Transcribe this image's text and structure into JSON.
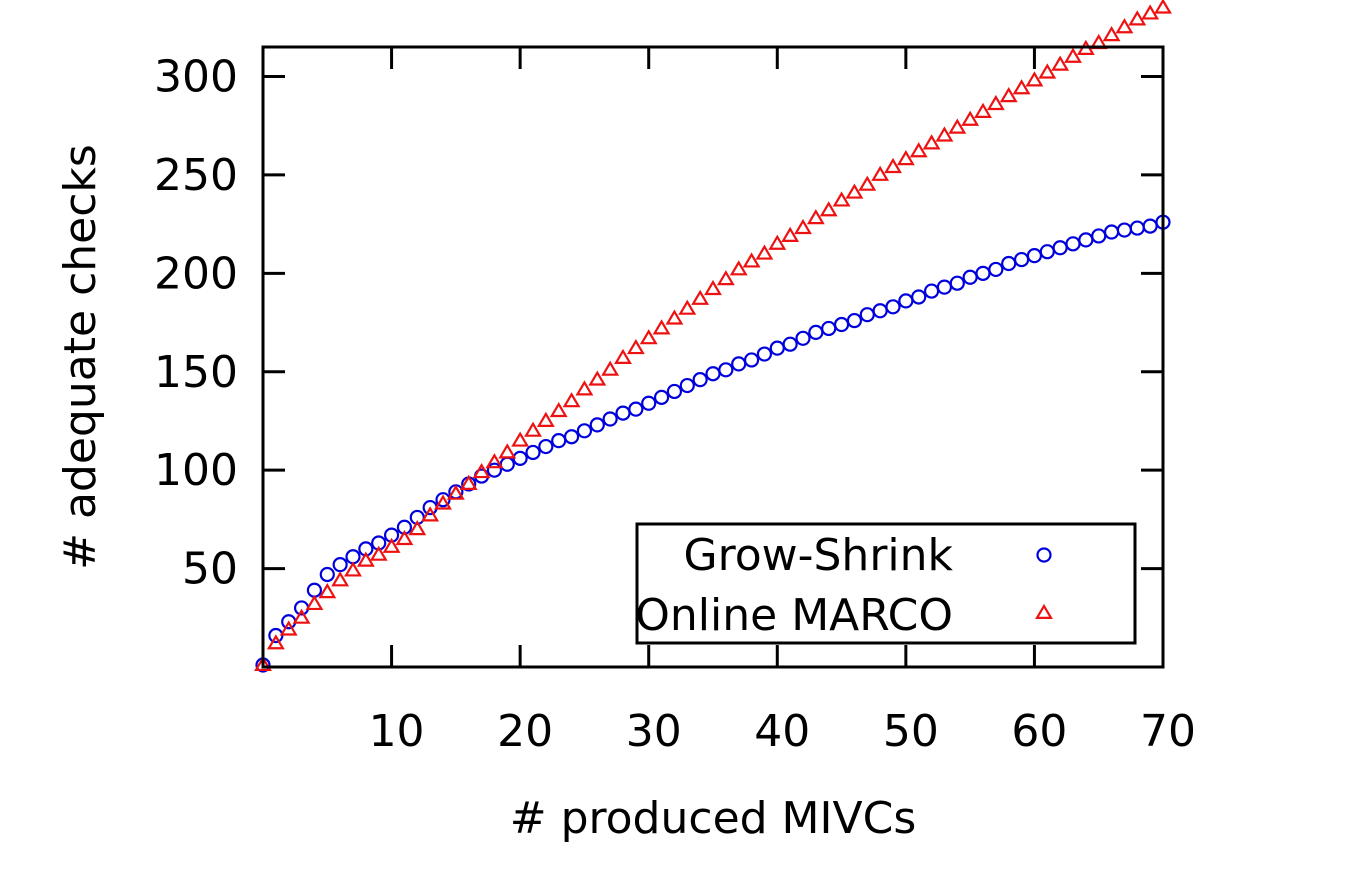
{
  "chart_data": {
    "type": "scatter",
    "xlabel": "# produced MIVCs",
    "ylabel": "# adequate checks",
    "xlim": [
      0,
      70
    ],
    "ylim": [
      0,
      315
    ],
    "xticks": [
      10,
      20,
      30,
      40,
      50,
      60,
      70
    ],
    "yticks": [
      50,
      100,
      150,
      200,
      250,
      300
    ],
    "x_tick_labels": [
      "10",
      "20",
      "30",
      "40",
      "50",
      "60",
      "70"
    ],
    "y_tick_labels": [
      "50",
      "100",
      "150",
      "200",
      "250",
      "300"
    ],
    "grid": false,
    "legend": "bottom-right",
    "series": [
      {
        "name": "Grow-Shrink",
        "marker": "circle",
        "color": "#0000dd",
        "x": [
          0,
          1,
          2,
          3,
          4,
          5,
          6,
          7,
          8,
          9,
          10,
          11,
          12,
          13,
          14,
          15,
          16,
          17,
          18,
          19,
          20,
          21,
          22,
          23,
          24,
          25,
          26,
          27,
          28,
          29,
          30,
          31,
          32,
          33,
          34,
          35,
          36,
          37,
          38,
          39,
          40,
          41,
          42,
          43,
          44,
          45,
          46,
          47,
          48,
          49,
          50,
          51,
          52,
          53,
          54,
          55,
          56,
          57,
          58,
          59,
          60,
          61,
          62,
          63,
          64,
          65,
          66,
          67,
          68,
          69,
          70
        ],
        "y": [
          1,
          16,
          23,
          30,
          39,
          47,
          52,
          56,
          60,
          63,
          67,
          71,
          76,
          81,
          85,
          89,
          93,
          97,
          100,
          103,
          106,
          109,
          112,
          115,
          117,
          120,
          123,
          126,
          129,
          131,
          134,
          137,
          140,
          143,
          146,
          149,
          151,
          154,
          156,
          159,
          162,
          164,
          167,
          170,
          172,
          174,
          176,
          179,
          181,
          183,
          186,
          188,
          191,
          193,
          195,
          198,
          200,
          202,
          205,
          207,
          209,
          211,
          213,
          215,
          217,
          219,
          221,
          222,
          223,
          224,
          226
        ]
      },
      {
        "name": "Online MARCO",
        "marker": "triangle",
        "color": "#ee1111",
        "x": [
          0,
          1,
          2,
          3,
          4,
          5,
          6,
          7,
          8,
          9,
          10,
          11,
          12,
          13,
          14,
          15,
          16,
          17,
          18,
          19,
          20,
          21,
          22,
          23,
          24,
          25,
          26,
          27,
          28,
          29,
          30,
          31,
          32,
          33,
          34,
          35,
          36,
          37,
          38,
          39,
          40,
          41,
          42,
          43,
          44,
          45,
          46,
          47,
          48,
          49,
          50,
          51,
          52,
          53,
          54,
          55,
          56,
          57,
          58,
          59,
          60,
          61,
          62,
          63,
          64,
          65,
          66,
          67,
          68,
          69,
          70
        ],
        "y": [
          1,
          12,
          19,
          25,
          32,
          38,
          44,
          49,
          54,
          57,
          61,
          65,
          70,
          77,
          83,
          88,
          93,
          99,
          104,
          109,
          115,
          120,
          125,
          130,
          135,
          141,
          146,
          151,
          157,
          162,
          167,
          172,
          177,
          182,
          187,
          192,
          197,
          202,
          206,
          210,
          215,
          219,
          223,
          228,
          232,
          237,
          241,
          245,
          250,
          254,
          258,
          262,
          266,
          270,
          274,
          278,
          282,
          286,
          290,
          294,
          298,
          302,
          306,
          310,
          314,
          317,
          321,
          325,
          329,
          332,
          335
        ]
      }
    ]
  }
}
